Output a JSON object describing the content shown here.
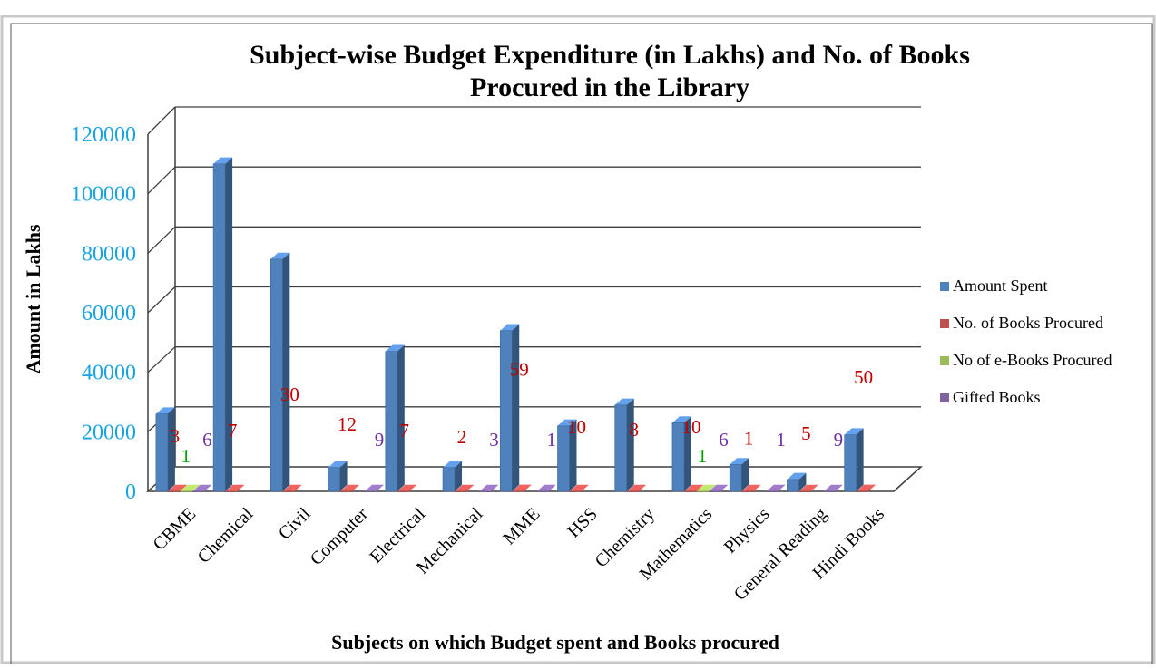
{
  "chart_data": {
    "type": "bar",
    "title_line1": "Subject-wise  Budget Expenditure  (in Lakhs) and No. of Books",
    "title_line2": "Procured  in  the Library",
    "xlabel": "Subjects on which  Budget spent  and  Books procured",
    "ylabel": "Amount  in Lakhs",
    "ylim": [
      0,
      120000
    ],
    "yticks": [
      "0",
      "20000",
      "40000",
      "60000",
      "80000",
      "100000",
      "120000"
    ],
    "grid": true,
    "legend_position": "right",
    "categories": [
      "CBME",
      "Chemical",
      "Civil",
      "Computer",
      "Electrical",
      "Mechanical",
      "MME",
      "HSS",
      "Chemistry",
      "Mathematics",
      "Physics",
      "General Reading",
      "Hindi Books"
    ],
    "series": [
      {
        "name": "Amount Spent",
        "color": "#4f81bd",
        "values": [
          26000,
          110000,
          78000,
          8000,
          47000,
          8000,
          54000,
          22000,
          29000,
          23000,
          9000,
          4000,
          19000
        ]
      },
      {
        "name": "No. of Books  Procured",
        "color": "#c0504d",
        "values": [
          3,
          7,
          30,
          12,
          7,
          2,
          59,
          10,
          8,
          10,
          1,
          5,
          50
        ]
      },
      {
        "name": "No of e-Books Procured",
        "color": "#9bbb59",
        "values": [
          1,
          null,
          null,
          null,
          null,
          null,
          null,
          null,
          null,
          1,
          null,
          null,
          null
        ]
      },
      {
        "name": "Gifted Books",
        "color": "#8064a2",
        "values": [
          6,
          null,
          null,
          9,
          null,
          3,
          1,
          null,
          null,
          6,
          1,
          9,
          null
        ]
      }
    ],
    "data_labels": [
      {
        "category": "CBME",
        "series": 1,
        "text": "3"
      },
      {
        "category": "CBME",
        "series": 2,
        "text": "1"
      },
      {
        "category": "CBME",
        "series": 3,
        "text": "6"
      },
      {
        "category": "Chemical",
        "series": 1,
        "text": "7"
      },
      {
        "category": "Civil",
        "series": 1,
        "text": "30"
      },
      {
        "category": "Computer",
        "series": 1,
        "text": "12"
      },
      {
        "category": "Computer",
        "series": 3,
        "text": "9"
      },
      {
        "category": "Electrical",
        "series": 1,
        "text": "7"
      },
      {
        "category": "Mechanical",
        "series": 1,
        "text": "2"
      },
      {
        "category": "Mechanical",
        "series": 3,
        "text": "3"
      },
      {
        "category": "MME",
        "series": 1,
        "text": "59"
      },
      {
        "category": "MME",
        "series": 3,
        "text": "1"
      },
      {
        "category": "HSS",
        "series": 1,
        "text": "10"
      },
      {
        "category": "Chemistry",
        "series": 1,
        "text": "8"
      },
      {
        "category": "Mathematics",
        "series": 1,
        "text": "10"
      },
      {
        "category": "Mathematics",
        "series": 2,
        "text": "1"
      },
      {
        "category": "Mathematics",
        "series": 3,
        "text": "6"
      },
      {
        "category": "Physics",
        "series": 1,
        "text": "1"
      },
      {
        "category": "Physics",
        "series": 3,
        "text": "1"
      },
      {
        "category": "General Reading",
        "series": 1,
        "text": "5"
      },
      {
        "category": "General Reading",
        "series": 3,
        "text": "9"
      },
      {
        "category": "Hindi Books",
        "series": 1,
        "text": "50"
      }
    ],
    "colors": {
      "axis_tick": "#1aa3e0",
      "gridline": "#3f3f3f",
      "label_series_1": "#c00000",
      "label_series_2": "#00a000",
      "label_series_3": "#7030a0"
    }
  }
}
